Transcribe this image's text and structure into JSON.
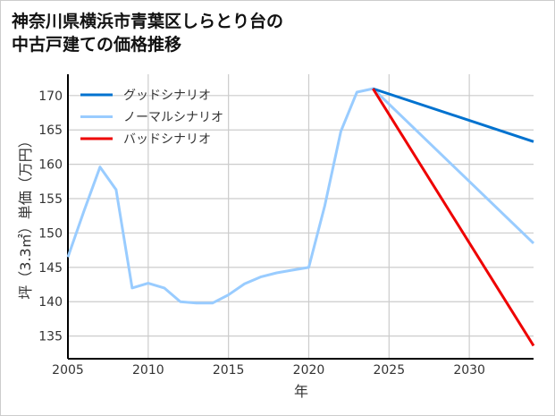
{
  "chart_data": {
    "type": "line",
    "title": "神奈川県横浜市青葉区しらとり台の\n中古戸建ての価格推移",
    "xlabel": "年",
    "ylabel": "坪（3.3㎡）単価（万円）",
    "xlim": [
      2005,
      2034
    ],
    "ylim": [
      131.7,
      173.1
    ],
    "xticks": [
      2005,
      2010,
      2015,
      2020,
      2025,
      2030
    ],
    "yticks": [
      135,
      140,
      145,
      150,
      155,
      160,
      165,
      170
    ],
    "grid": true,
    "legend_position": "top-left",
    "series": [
      {
        "name": "グッドシナリオ",
        "color": "#0072cf",
        "x": [
          2024,
          2034
        ],
        "y": [
          171,
          163.3
        ]
      },
      {
        "name": "ノーマルシナリオ",
        "color": "#99ccff",
        "x": [
          2005,
          2006,
          2007,
          2008,
          2009,
          2010,
          2011,
          2012,
          2013,
          2014,
          2015,
          2016,
          2017,
          2018,
          2019,
          2020,
          2021,
          2022,
          2023,
          2024,
          2034
        ],
        "y": [
          146.5,
          153.2,
          159.6,
          156.3,
          142,
          142.7,
          142,
          140,
          139.8,
          139.8,
          141,
          142.6,
          143.6,
          144.2,
          144.6,
          145,
          154,
          164.8,
          170.5,
          171,
          148.5
        ]
      },
      {
        "name": "バッドシナリオ",
        "color": "#ee0000",
        "x": [
          2024,
          2034
        ],
        "y": [
          171,
          133.6
        ]
      }
    ]
  }
}
